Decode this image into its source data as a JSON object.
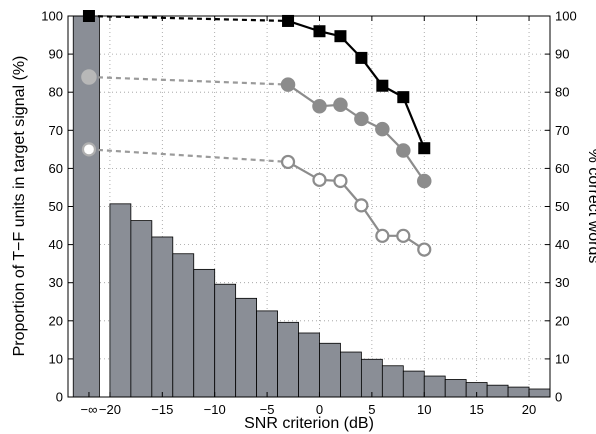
{
  "chart_data": {
    "type": "bar",
    "xlabel": "SNR criterion (dB)",
    "ylabel_left": "Proportion of T−F units in target signal (%)",
    "ylabel_right": "% correct words",
    "xlim": [
      -24,
      22
    ],
    "ylim": [
      0,
      100
    ],
    "x_ticks": [
      "−∞",
      "−20",
      "−15",
      "−10",
      "−5",
      "0",
      "5",
      "10",
      "15",
      "20"
    ],
    "y_ticks_left": [
      0,
      10,
      20,
      30,
      40,
      50,
      60,
      70,
      80,
      90,
      100
    ],
    "y_ticks_right": [
      0,
      10,
      20,
      30,
      40,
      50,
      60,
      70,
      80,
      90,
      100
    ],
    "grid": true,
    "histogram": {
      "neg_inf_value": 100,
      "bins": [
        {
          "x0": -20,
          "x1": -18,
          "value": 50.7
        },
        {
          "x0": -18,
          "x1": -16,
          "value": 46.3
        },
        {
          "x0": -16,
          "x1": -14,
          "value": 42.0
        },
        {
          "x0": -14,
          "x1": -12,
          "value": 37.6
        },
        {
          "x0": -12,
          "x1": -10,
          "value": 33.5
        },
        {
          "x0": -10,
          "x1": -8,
          "value": 29.6
        },
        {
          "x0": -8,
          "x1": -6,
          "value": 25.9
        },
        {
          "x0": -6,
          "x1": -4,
          "value": 22.6
        },
        {
          "x0": -4,
          "x1": -2,
          "value": 19.6
        },
        {
          "x0": -2,
          "x1": 0,
          "value": 16.8
        },
        {
          "x0": 0,
          "x1": 2,
          "value": 14.1
        },
        {
          "x0": 2,
          "x1": 4,
          "value": 11.8
        },
        {
          "x0": 4,
          "x1": 6,
          "value": 9.9
        },
        {
          "x0": 6,
          "x1": 8,
          "value": 8.2
        },
        {
          "x0": 8,
          "x1": 10,
          "value": 6.8
        },
        {
          "x0": 10,
          "x1": 12,
          "value": 5.5
        },
        {
          "x0": 12,
          "x1": 14,
          "value": 4.6
        },
        {
          "x0": 14,
          "x1": 16,
          "value": 3.8
        },
        {
          "x0": 16,
          "x1": 18,
          "value": 3.1
        },
        {
          "x0": 18,
          "x1": 20,
          "value": 2.6
        },
        {
          "x0": 20,
          "x1": 22,
          "value": 2.1
        }
      ]
    },
    "series": [
      {
        "marker": "square",
        "color": "#000000",
        "neg_inf_value": 100,
        "x": [
          -3,
          0,
          2,
          4,
          6,
          8,
          10
        ],
        "y": [
          98.7,
          96.0,
          94.7,
          89.0,
          81.7,
          78.7,
          65.3
        ]
      },
      {
        "marker": "filled-circle",
        "color": "#8c8c8c",
        "neg_inf_value": 84,
        "x": [
          -3,
          0,
          2,
          4,
          6,
          8,
          10
        ],
        "y": [
          82.0,
          76.3,
          76.7,
          73.0,
          70.3,
          64.7,
          56.7
        ]
      },
      {
        "marker": "open-circle",
        "color": "#8c8c8c",
        "neg_inf_value": 65,
        "x": [
          -3,
          0,
          2,
          4,
          6,
          8,
          10
        ],
        "y": [
          61.7,
          57.0,
          56.7,
          50.3,
          42.3,
          42.3,
          38.7
        ]
      }
    ]
  }
}
